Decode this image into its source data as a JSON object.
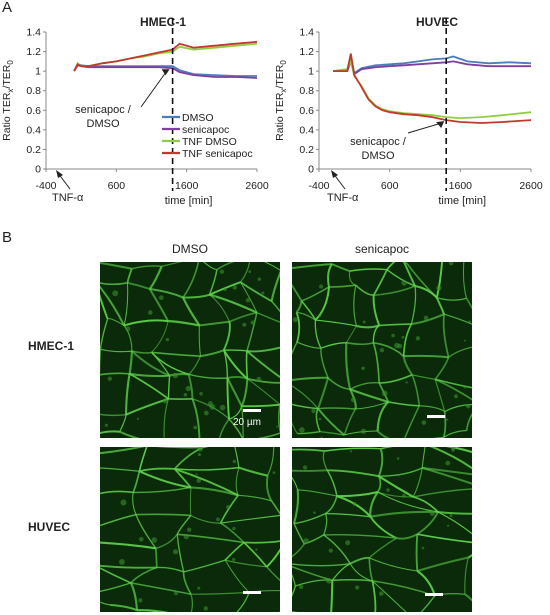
{
  "figure": {
    "panel_a_letter": "A",
    "panel_b_letter": "B",
    "arrow_label": "TNF-α",
    "time_label": "time [min]",
    "ratio_label": "Ratio TER",
    "ratio_sub_x": "x",
    "ratio_sub_0": "0",
    "annotation_line1": "senicapoc /",
    "annotation_line2": "DMSO",
    "legend": [
      "DMSO",
      "senicapoc",
      "TNF DMSO",
      "TNF senicapoc"
    ],
    "colors": {
      "DMSO": "#4a7ebb",
      "senicapoc": "#7f3fa0",
      "TNF DMSO": "#8fce3f",
      "TNF senicapoc": "#c0392b"
    }
  },
  "chart_data": [
    {
      "type": "line",
      "title": "HMEC-1",
      "xlabel": "time [min]",
      "ylabel": "Ratio TERx/TER0",
      "xlim": [
        -400,
        2600
      ],
      "ylim": [
        0,
        1.4
      ],
      "x_ticks": [
        -400,
        600,
        1600,
        2600
      ],
      "y_ticks": [
        0,
        0.2,
        0.4,
        0.6,
        0.8,
        1,
        1.2,
        1.4
      ],
      "vline_x": 1400,
      "series": [
        {
          "name": "DMSO",
          "x": [
            0,
            50,
            100,
            200,
            400,
            600,
            800,
            1000,
            1200,
            1400,
            1500,
            1700,
            2000,
            2300,
            2600
          ],
          "values": [
            1.0,
            1.07,
            1.06,
            1.05,
            1.05,
            1.05,
            1.05,
            1.05,
            1.05,
            1.05,
            1.01,
            0.97,
            0.96,
            0.95,
            0.95
          ]
        },
        {
          "name": "senicapoc",
          "x": [
            0,
            50,
            100,
            200,
            400,
            600,
            800,
            1000,
            1200,
            1400,
            1500,
            1700,
            2000,
            2300,
            2600
          ],
          "values": [
            1.0,
            1.06,
            1.05,
            1.04,
            1.04,
            1.04,
            1.04,
            1.04,
            1.04,
            1.03,
            0.99,
            0.96,
            0.94,
            0.94,
            0.93
          ]
        },
        {
          "name": "TNF DMSO",
          "x": [
            0,
            50,
            100,
            200,
            400,
            600,
            800,
            1000,
            1200,
            1400,
            1500,
            1700,
            2000,
            2300,
            2600
          ],
          "values": [
            1.0,
            1.08,
            1.05,
            1.05,
            1.08,
            1.1,
            1.13,
            1.15,
            1.18,
            1.2,
            1.25,
            1.22,
            1.24,
            1.26,
            1.28
          ]
        },
        {
          "name": "TNF senicapoc",
          "x": [
            0,
            50,
            100,
            200,
            400,
            600,
            800,
            1000,
            1200,
            1400,
            1500,
            1700,
            2000,
            2300,
            2600
          ],
          "values": [
            1.0,
            1.07,
            1.05,
            1.05,
            1.08,
            1.1,
            1.13,
            1.16,
            1.19,
            1.22,
            1.28,
            1.24,
            1.26,
            1.28,
            1.3
          ]
        }
      ]
    },
    {
      "type": "line",
      "title": "HUVEC",
      "xlabel": "time [min]",
      "ylabel": "Ratio TERx/TER0",
      "xlim": [
        -400,
        2600
      ],
      "ylim": [
        0,
        1.4
      ],
      "x_ticks": [
        -400,
        600,
        1600,
        2600
      ],
      "y_ticks": [
        0,
        0.2,
        0.4,
        0.6,
        0.8,
        1,
        1.2,
        1.4
      ],
      "vline_x": 1400,
      "series": [
        {
          "name": "DMSO",
          "x": [
            -200,
            0,
            50,
            100,
            200,
            400,
            600,
            800,
            1000,
            1200,
            1400,
            1500,
            1700,
            2000,
            2300,
            2600
          ],
          "values": [
            1.0,
            1.02,
            1.15,
            0.98,
            1.03,
            1.06,
            1.07,
            1.08,
            1.1,
            1.12,
            1.13,
            1.15,
            1.1,
            1.08,
            1.09,
            1.08
          ]
        },
        {
          "name": "senicapoc",
          "x": [
            -200,
            0,
            50,
            100,
            200,
            400,
            600,
            800,
            1000,
            1200,
            1400,
            1500,
            1700,
            2000,
            2300,
            2600
          ],
          "values": [
            1.0,
            1.0,
            1.1,
            0.97,
            1.02,
            1.04,
            1.05,
            1.06,
            1.07,
            1.08,
            1.09,
            1.1,
            1.07,
            1.05,
            1.05,
            1.05
          ]
        },
        {
          "name": "TNF DMSO",
          "x": [
            -200,
            0,
            50,
            100,
            200,
            300,
            400,
            500,
            600,
            800,
            1000,
            1200,
            1400,
            1600,
            1900,
            2200,
            2600
          ],
          "values": [
            1.0,
            1.02,
            1.1,
            0.95,
            0.85,
            0.72,
            0.65,
            0.61,
            0.59,
            0.57,
            0.56,
            0.55,
            0.53,
            0.52,
            0.53,
            0.55,
            0.58
          ]
        },
        {
          "name": "TNF senicapoc",
          "x": [
            -200,
            0,
            50,
            100,
            200,
            300,
            400,
            500,
            600,
            800,
            1000,
            1200,
            1400,
            1600,
            1900,
            2200,
            2600
          ],
          "values": [
            1.0,
            1.0,
            1.18,
            0.96,
            0.84,
            0.71,
            0.64,
            0.6,
            0.58,
            0.56,
            0.55,
            0.53,
            0.5,
            0.48,
            0.47,
            0.48,
            0.5
          ]
        }
      ]
    }
  ],
  "micrographs": {
    "col_headers": [
      "DMSO",
      "senicapoc"
    ],
    "row_labels": [
      "HMEC-1",
      "HUVEC"
    ],
    "scale_label": "20 µm"
  }
}
